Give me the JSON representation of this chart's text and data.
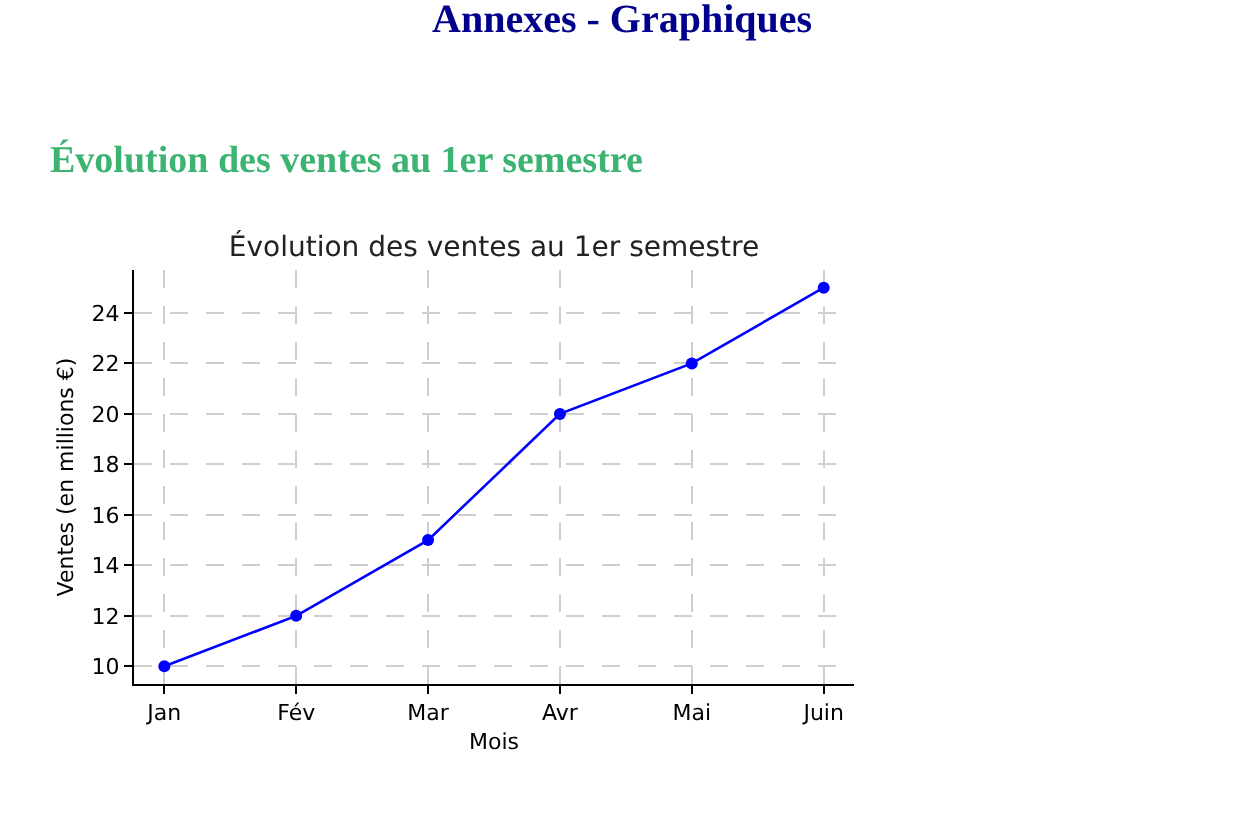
{
  "chart_data": {
    "type": "line",
    "title": "Évolution des ventes au 1er semestre",
    "xlabel": "Mois",
    "ylabel": "Ventes (en millions €)",
    "annotations": [
      "Annexes - Graphiques",
      "Évolution des ventes au 1er semestre"
    ],
    "categories": [
      "Jan",
      "Fév",
      "Mar",
      "Avr",
      "Mai",
      "Juin"
    ],
    "series": [
      {
        "color": "#0000ff",
        "values": [
          10,
          12,
          15,
          20,
          22,
          25
        ]
      }
    ],
    "ylim": [
      9.3,
      25.7
    ],
    "yticks": [
      10,
      12,
      14,
      16,
      18,
      20,
      22,
      24
    ],
    "grid": true,
    "marker": "circle",
    "line_style": "solid"
  }
}
